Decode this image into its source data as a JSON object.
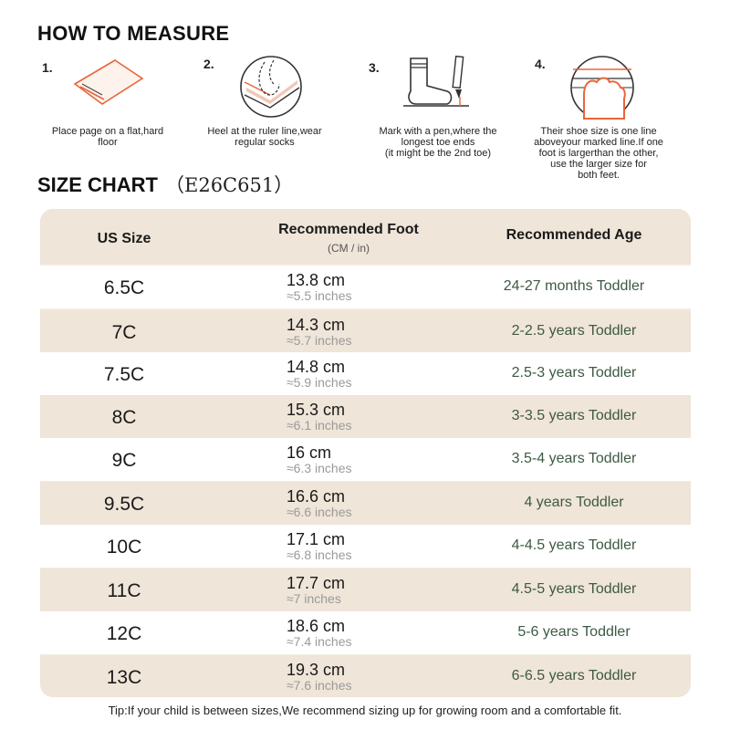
{
  "how_to_measure": {
    "title": "HOW TO MEASURE",
    "steps": [
      {
        "num": "1.",
        "desc": "Place page on a flat,hard\nfloor",
        "icon": "paper-on-floor-icon"
      },
      {
        "num": "2.",
        "desc": "Heel at the ruler line,wear\nregular socks",
        "icon": "heel-on-ruler-icon"
      },
      {
        "num": "3.",
        "desc": "Mark with a pen,where the\nlongest toe ends\n(it might be the 2nd toe)",
        "icon": "sock-and-pen-icon"
      },
      {
        "num": "4.",
        "desc": "Their shoe size is one line\naboveyour marked line.If one\nfoot is largerthan the other,\nuse the larger size for\nboth feet.",
        "icon": "toe-line-icon"
      }
    ]
  },
  "size_chart": {
    "title": "SIZE CHART",
    "code": "（E26C651）",
    "headers": {
      "us_size": "US Size",
      "foot": "Recommended Foot",
      "foot_unit": "(CM / in)",
      "age": "Recommended Age"
    },
    "rows": [
      {
        "size": "6.5C",
        "cm": "13.8 cm",
        "inch": "≈5.5 inches",
        "age": "24-27 months Toddler"
      },
      {
        "size": "7C",
        "cm": "14.3 cm",
        "inch": "≈5.7 inches",
        "age": "2-2.5 years Toddler"
      },
      {
        "size": "7.5C",
        "cm": "14.8 cm",
        "inch": "≈5.9 inches",
        "age": "2.5-3 years Toddler"
      },
      {
        "size": "8C",
        "cm": "15.3 cm",
        "inch": "≈6.1 inches",
        "age": "3-3.5 years Toddler"
      },
      {
        "size": "9C",
        "cm": "16 cm",
        "inch": "≈6.3 inches",
        "age": "3.5-4 years Toddler"
      },
      {
        "size": "9.5C",
        "cm": "16.6 cm",
        "inch": "≈6.6 inches",
        "age": "4 years Toddler"
      },
      {
        "size": "10C",
        "cm": "17.1 cm",
        "inch": "≈6.8 inches",
        "age": "4-4.5 years Toddler"
      },
      {
        "size": "11C",
        "cm": "17.7 cm",
        "inch": "≈7 inches",
        "age": "4.5-5 years Toddler"
      },
      {
        "size": "12C",
        "cm": "18.6 cm",
        "inch": "≈7.4 inches",
        "age": "5-6 years Toddler"
      },
      {
        "size": "13C",
        "cm": "19.3 cm",
        "inch": "≈7.6 inches",
        "age": "6-6.5 years Toddler"
      }
    ]
  },
  "tip": "Tip:If your child is between sizes,We recommend sizing up for growing room and a comfortable fit.",
  "colors": {
    "accent": "#e8663a",
    "table_bg": "#f3ece2",
    "age_text": "#3d5a44"
  }
}
